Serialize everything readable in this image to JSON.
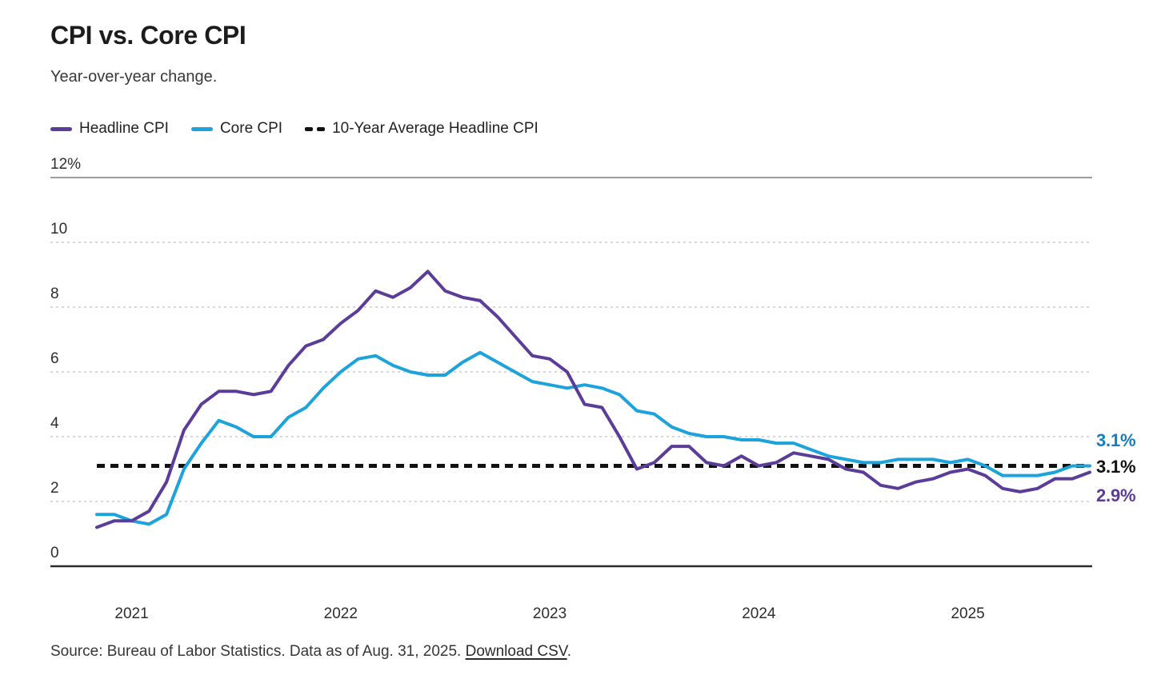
{
  "header": {
    "title": "CPI vs. Core CPI",
    "subtitle": "Year-over-year change."
  },
  "legend": {
    "items": [
      {
        "label": "Headline CPI",
        "color": "#5B3C98",
        "swatch": "line"
      },
      {
        "label": "Core CPI",
        "color": "#1CA3DC",
        "swatch": "line"
      },
      {
        "label": "10-Year Average Headline CPI",
        "color": "#111111",
        "swatch": "dashed"
      }
    ]
  },
  "right_labels": {
    "core": {
      "text": "3.1%",
      "color": "#157EBE"
    },
    "average": {
      "text": "3.1%",
      "color": "#111111"
    },
    "headline": {
      "text": "2.9%",
      "color": "#5B3C98"
    }
  },
  "footer": {
    "source_text": "Source: Bureau of Labor Statistics. Data as of Aug. 31, 2025. ",
    "link_text": "Download CSV",
    "after_link": "."
  },
  "chart_data": {
    "type": "line",
    "title": "CPI vs. Core CPI",
    "subtitle": "Year-over-year change.",
    "ylim": [
      0,
      12
    ],
    "grid": "horizontal-dashed",
    "legend_position": "top-left",
    "y_ticks": [
      {
        "label": "12%",
        "value": 12,
        "style": "solid"
      },
      {
        "label": "10",
        "value": 10,
        "style": "dashed"
      },
      {
        "label": "8",
        "value": 8,
        "style": "dashed"
      },
      {
        "label": "6",
        "value": 6,
        "style": "dashed"
      },
      {
        "label": "4",
        "value": 4,
        "style": "dashed"
      },
      {
        "label": "2",
        "value": 2,
        "style": "dashed"
      },
      {
        "label": "0",
        "value": 0,
        "style": "baseline"
      }
    ],
    "x_ticks": [
      {
        "label": "2021",
        "month": "2021-01"
      },
      {
        "label": "2022",
        "month": "2022-01"
      },
      {
        "label": "2023",
        "month": "2023-01"
      },
      {
        "label": "2024",
        "month": "2024-01"
      },
      {
        "label": "2025",
        "month": "2025-01"
      }
    ],
    "x_months": [
      "2020-11",
      "2020-12",
      "2021-01",
      "2021-02",
      "2021-03",
      "2021-04",
      "2021-05",
      "2021-06",
      "2021-07",
      "2021-08",
      "2021-09",
      "2021-10",
      "2021-11",
      "2021-12",
      "2022-01",
      "2022-02",
      "2022-03",
      "2022-04",
      "2022-05",
      "2022-06",
      "2022-07",
      "2022-08",
      "2022-09",
      "2022-10",
      "2022-11",
      "2022-12",
      "2023-01",
      "2023-02",
      "2023-03",
      "2023-04",
      "2023-05",
      "2023-06",
      "2023-07",
      "2023-08",
      "2023-09",
      "2023-10",
      "2023-11",
      "2023-12",
      "2024-01",
      "2024-02",
      "2024-03",
      "2024-04",
      "2024-05",
      "2024-06",
      "2024-07",
      "2024-08",
      "2024-09",
      "2024-10",
      "2024-11",
      "2024-12",
      "2025-01",
      "2025-02",
      "2025-03",
      "2025-04",
      "2025-05",
      "2025-06",
      "2025-07",
      "2025-08"
    ],
    "average_line": {
      "name": "10-Year Average Headline CPI",
      "value": 3.1,
      "color": "#111111",
      "style": "dashed"
    },
    "series": [
      {
        "name": "Headline CPI",
        "color": "#5B3C98",
        "end_label": "2.9%",
        "values": [
          1.2,
          1.4,
          1.4,
          1.7,
          2.6,
          4.2,
          5.0,
          5.4,
          5.4,
          5.3,
          5.4,
          6.2,
          6.8,
          7.0,
          7.5,
          7.9,
          8.5,
          8.3,
          8.6,
          9.1,
          8.5,
          8.3,
          8.2,
          7.7,
          7.1,
          6.5,
          6.4,
          6.0,
          5.0,
          4.9,
          4.0,
          3.0,
          3.2,
          3.7,
          3.7,
          3.2,
          3.1,
          3.4,
          3.1,
          3.2,
          3.5,
          3.4,
          3.3,
          3.0,
          2.9,
          2.5,
          2.4,
          2.6,
          2.7,
          2.9,
          3.0,
          2.8,
          2.4,
          2.3,
          2.4,
          2.7,
          2.7,
          2.9
        ]
      },
      {
        "name": "Core CPI",
        "color": "#1CA3DC",
        "end_label": "3.1%",
        "values": [
          1.6,
          1.6,
          1.4,
          1.3,
          1.6,
          3.0,
          3.8,
          4.5,
          4.3,
          4.0,
          4.0,
          4.6,
          4.9,
          5.5,
          6.0,
          6.4,
          6.5,
          6.2,
          6.0,
          5.9,
          5.9,
          6.3,
          6.6,
          6.3,
          6.0,
          5.7,
          5.6,
          5.5,
          5.6,
          5.5,
          5.3,
          4.8,
          4.7,
          4.3,
          4.1,
          4.0,
          4.0,
          3.9,
          3.9,
          3.8,
          3.8,
          3.6,
          3.4,
          3.3,
          3.2,
          3.2,
          3.3,
          3.3,
          3.3,
          3.2,
          3.3,
          3.1,
          2.8,
          2.8,
          2.8,
          2.9,
          3.1,
          3.1
        ]
      }
    ]
  }
}
